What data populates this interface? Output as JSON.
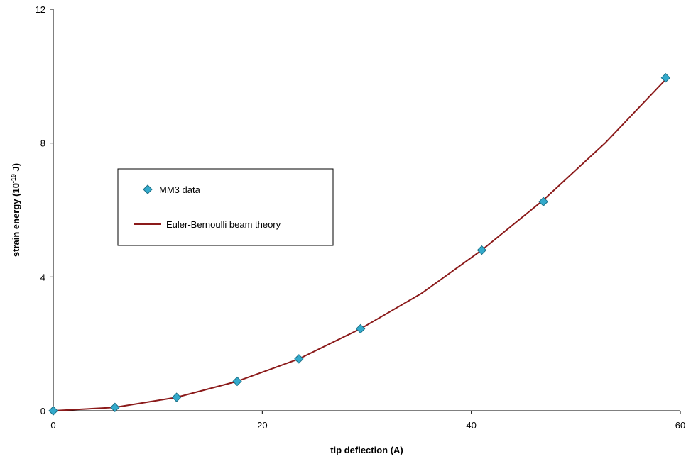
{
  "chart_data": {
    "type": "line",
    "xlabel": "tip deflection (A)",
    "ylabel": {
      "prefix": "strain energy (10",
      "exponent": "-19",
      "suffix": " J)"
    },
    "xlim": [
      0,
      60
    ],
    "ylim": [
      0,
      12
    ],
    "xticks": [
      "0",
      "20",
      "40",
      "60"
    ],
    "yticks": [
      "0",
      "4",
      "8",
      "12"
    ],
    "grid": false,
    "legend_position": "left-center",
    "series": [
      {
        "name": "MM3 data",
        "kind": "scatter",
        "marker": "diamond",
        "color": "#33aacc",
        "x": [
          0,
          5.9,
          11.8,
          17.6,
          23.5,
          29.4,
          41.0,
          46.9,
          58.6
        ],
        "y": [
          0,
          0.1,
          0.4,
          0.88,
          1.55,
          2.45,
          4.8,
          6.25,
          9.95
        ]
      },
      {
        "name": "Euler-Bernoulli beam theory",
        "kind": "line",
        "color": "#8b1a1a",
        "x": [
          0,
          5.9,
          11.8,
          17.6,
          23.5,
          29.4,
          35.2,
          41.0,
          46.9,
          52.8,
          58.6
        ],
        "y": [
          0,
          0.1,
          0.4,
          0.88,
          1.55,
          2.45,
          3.5,
          4.8,
          6.3,
          8.0,
          9.9
        ]
      }
    ]
  }
}
